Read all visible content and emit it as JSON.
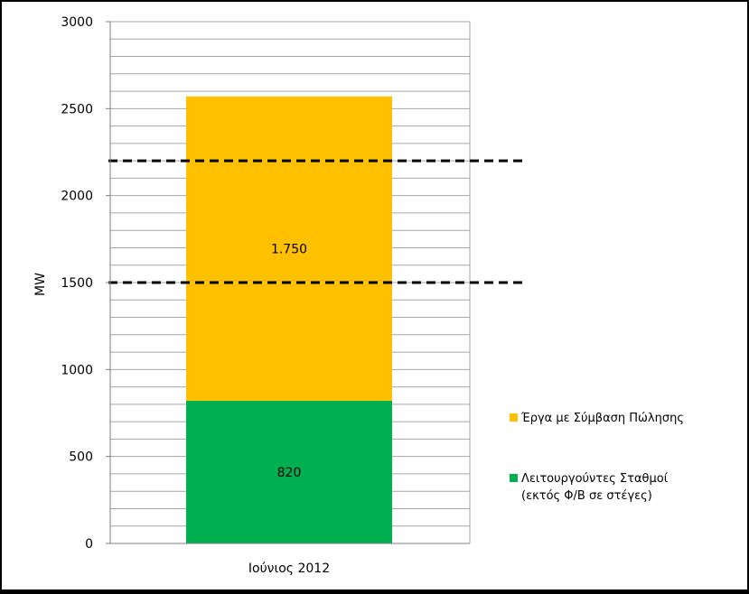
{
  "chart_data": {
    "type": "bar",
    "stacked": true,
    "categories": [
      "Ιούνιος 2012"
    ],
    "series": [
      {
        "name": "Λειτουργούντες Σταθμοί\n(εκτός Φ/Β σε στέγες)",
        "values": [
          820
        ],
        "color": "#00b050",
        "label": "820"
      },
      {
        "name": "Έργα με Σύμβαση Πώλησης",
        "values": [
          1750
        ],
        "color": "#ffc000",
        "label": "1.750"
      }
    ],
    "reference_lines": [
      2200,
      1500
    ],
    "xlabel": "",
    "ylabel": "MW",
    "ylim": [
      0,
      3000
    ],
    "yticks": [
      0,
      500,
      1000,
      1500,
      2000,
      2500,
      3000
    ],
    "minor_grid_step": 100,
    "grid": true,
    "legend_position": "right"
  }
}
